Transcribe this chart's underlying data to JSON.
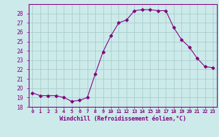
{
  "x": [
    0,
    1,
    2,
    3,
    4,
    5,
    6,
    7,
    8,
    9,
    10,
    11,
    12,
    13,
    14,
    15,
    16,
    17,
    18,
    19,
    20,
    21,
    22,
    23
  ],
  "y": [
    19.5,
    19.2,
    19.2,
    19.2,
    19.0,
    18.6,
    18.7,
    19.0,
    21.5,
    23.9,
    25.6,
    27.0,
    27.3,
    28.3,
    28.4,
    28.4,
    28.3,
    28.3,
    26.5,
    25.2,
    24.4,
    23.2,
    22.3,
    22.2
  ],
  "line_color": "#800080",
  "marker": "D",
  "marker_size": 2.5,
  "bg_color": "#cceaea",
  "grid_color": "#aacccc",
  "xlabel": "Windchill (Refroidissement éolien,°C)",
  "xlabel_color": "#800080",
  "tick_color": "#800080",
  "ylim": [
    18,
    29
  ],
  "yticks": [
    18,
    19,
    20,
    21,
    22,
    23,
    24,
    25,
    26,
    27,
    28
  ],
  "xlim": [
    -0.5,
    23.5
  ],
  "xticks": [
    0,
    1,
    2,
    3,
    4,
    5,
    6,
    7,
    8,
    9,
    10,
    11,
    12,
    13,
    14,
    15,
    16,
    17,
    18,
    19,
    20,
    21,
    22,
    23
  ],
  "xtick_labels": [
    "0",
    "1",
    "2",
    "3",
    "4",
    "5",
    "6",
    "7",
    "8",
    "9",
    "10",
    "11",
    "12",
    "13",
    "14",
    "15",
    "16",
    "17",
    "18",
    "19",
    "20",
    "21",
    "22",
    "23"
  ]
}
